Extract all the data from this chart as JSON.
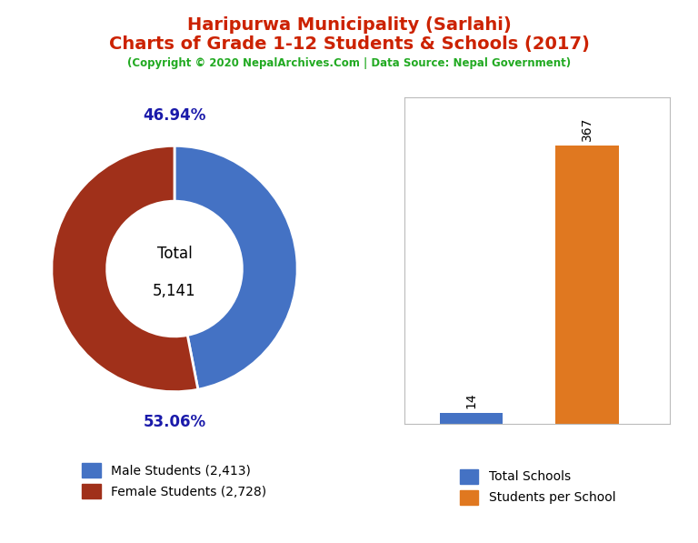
{
  "title_line1": "Haripurwa Municipality (Sarlahi)",
  "title_line2": "Charts of Grade 1-12 Students & Schools (2017)",
  "subtitle": "(Copyright © 2020 NepalArchives.Com | Data Source: Nepal Government)",
  "title_color": "#cc2200",
  "subtitle_color": "#22aa22",
  "male_students": 2413,
  "female_students": 2728,
  "total_students": 5141,
  "male_pct": "46.94%",
  "female_pct": "53.06%",
  "donut_colors": [
    "#4472c4",
    "#a0301a"
  ],
  "male_label": "Male Students (2,413)",
  "female_label": "Female Students (2,728)",
  "total_label_line1": "Total",
  "total_label_line2": "5,141",
  "bar_categories": [
    "Total Schools",
    "Students per School"
  ],
  "bar_values": [
    14,
    367
  ],
  "bar_colors": [
    "#4472c4",
    "#e07820"
  ],
  "bar_label_schools": "14",
  "bar_label_students": "367",
  "bg_color": "#ffffff",
  "pct_color": "#1a1aaa",
  "center_text_color": "#000000",
  "figsize": [
    7.68,
    5.97
  ],
  "dpi": 100
}
